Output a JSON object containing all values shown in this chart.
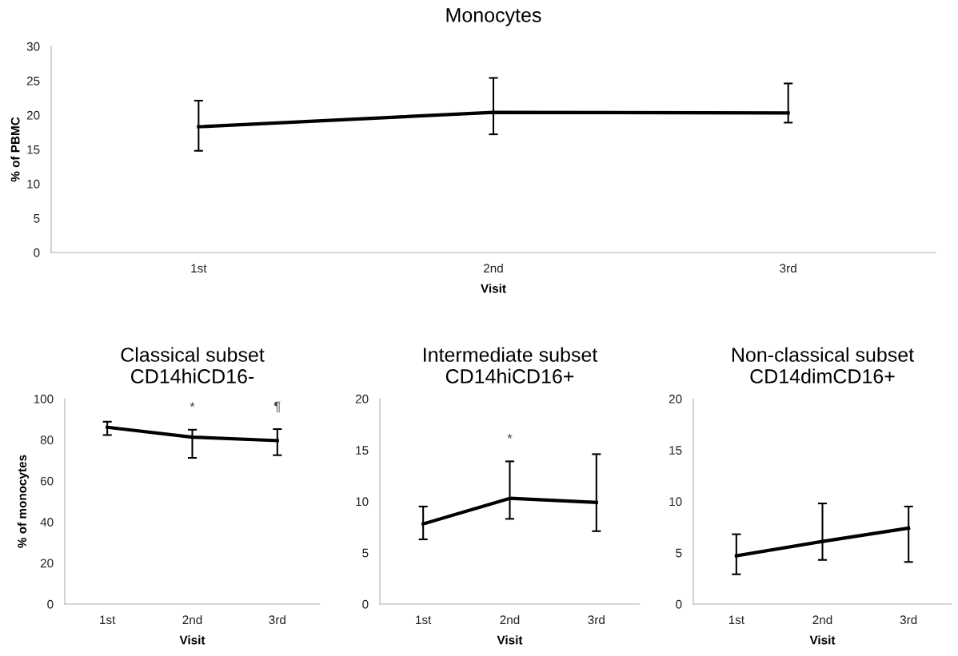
{
  "chart_data": [
    {
      "type": "line",
      "title": "Monocytes",
      "xlabel": "Visit",
      "ylabel": "% of PBMC",
      "categories": [
        "1st",
        "2nd",
        "3rd"
      ],
      "series": [
        {
          "color": "#000000",
          "values": [
            18.3,
            20.4,
            20.3
          ],
          "errors": [
            [
              14.8,
              22.1
            ],
            [
              17.2,
              25.4
            ],
            [
              18.9,
              24.6
            ]
          ]
        }
      ],
      "ylim": [
        0,
        30
      ],
      "yticks": [
        0,
        5,
        10,
        15,
        20,
        25,
        30
      ],
      "grid": false,
      "legend": false,
      "marker": "none",
      "line_style": "solid"
    },
    {
      "type": "line",
      "title": "Classical subset\nCD14hiCD16-",
      "xlabel": "Visit",
      "ylabel": "% of monocytes",
      "categories": [
        "1st",
        "2nd",
        "3rd"
      ],
      "series": [
        {
          "color": "#000000",
          "values": [
            86.1,
            81.3,
            79.6
          ],
          "errors": [
            [
              82.3,
              88.8
            ],
            [
              71.2,
              84.9
            ],
            [
              72.5,
              85.2
            ]
          ]
        }
      ],
      "ylim": [
        0,
        100
      ],
      "yticks": [
        0,
        20,
        40,
        60,
        80,
        100
      ],
      "grid": false,
      "legend": false,
      "marker": "none",
      "line_style": "solid",
      "annotations": [
        "*",
        "¶"
      ]
    },
    {
      "type": "line",
      "title": "Intermediate subset\nCD14hiCD16+",
      "xlabel": "Visit",
      "categories": [
        "1st",
        "2nd",
        "3rd"
      ],
      "series": [
        {
          "color": "#000000",
          "values": [
            7.8,
            10.3,
            9.9
          ],
          "errors": [
            [
              6.3,
              9.5
            ],
            [
              8.3,
              13.9
            ],
            [
              7.1,
              14.6
            ]
          ]
        }
      ],
      "ylim": [
        0,
        20
      ],
      "yticks": [
        0,
        5,
        10,
        15,
        20
      ],
      "grid": false,
      "legend": false,
      "marker": "none",
      "line_style": "solid",
      "annotations": [
        "*"
      ]
    },
    {
      "type": "line",
      "title": "Non-classical subset\nCD14dimCD16+",
      "xlabel": "Visit",
      "categories": [
        "1st",
        "2nd",
        "3rd"
      ],
      "series": [
        {
          "color": "#000000",
          "values": [
            4.7,
            6.1,
            7.4
          ],
          "errors": [
            [
              2.9,
              6.8
            ],
            [
              4.3,
              9.8
            ],
            [
              4.1,
              9.5
            ]
          ]
        }
      ],
      "ylim": [
        0,
        20
      ],
      "yticks": [
        0,
        5,
        10,
        15,
        20
      ],
      "grid": false,
      "legend": false,
      "marker": "none",
      "line_style": "solid"
    }
  ]
}
